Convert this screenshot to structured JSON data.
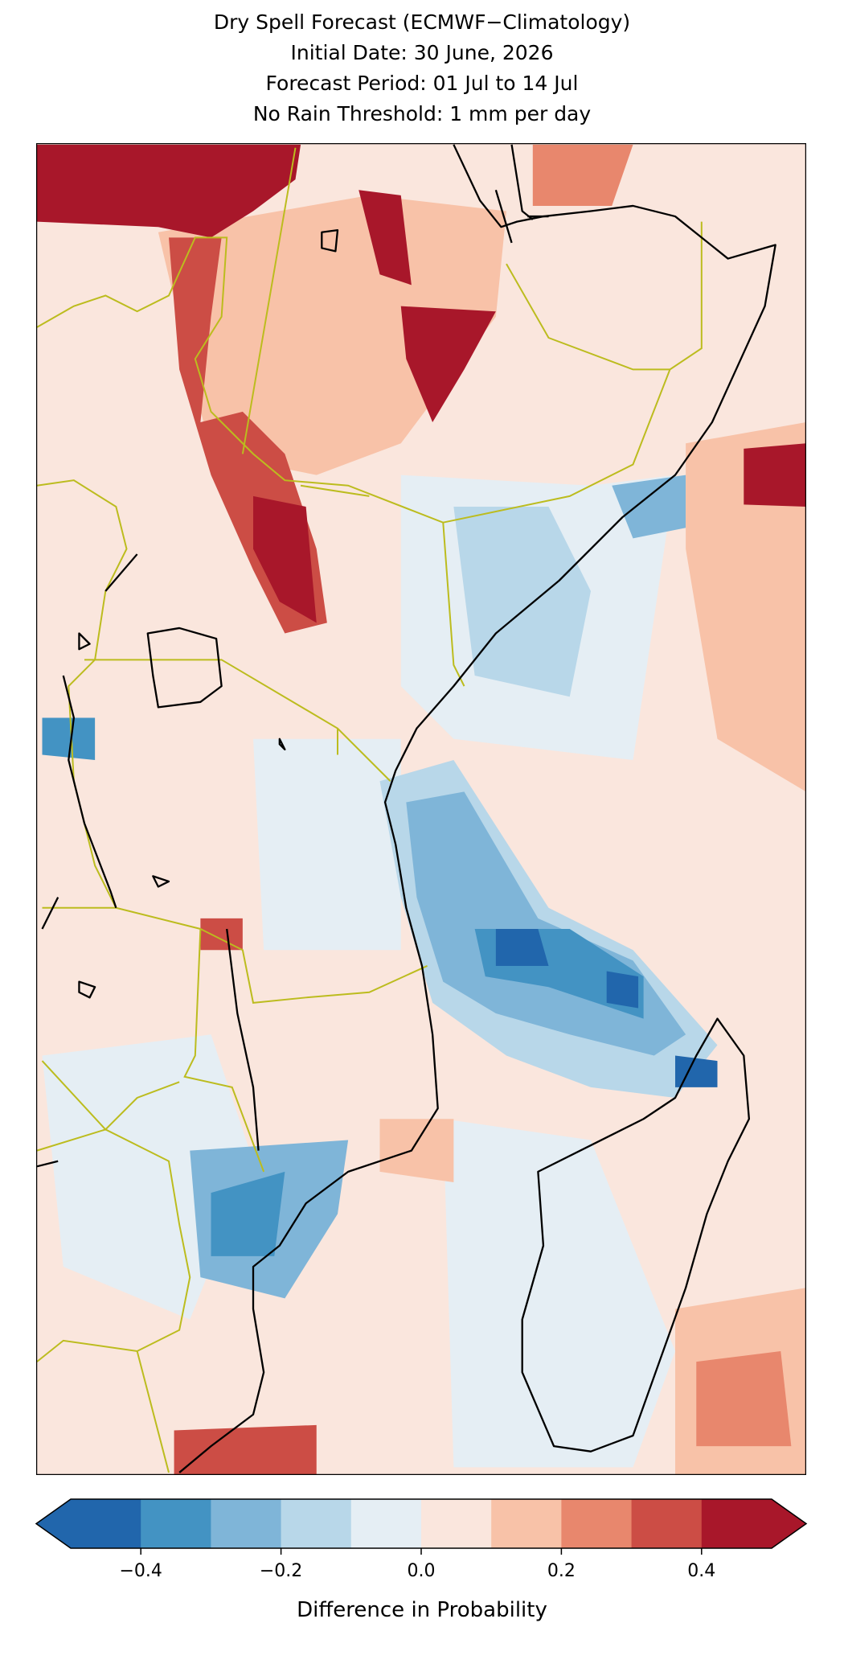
{
  "title_lines": [
    "Dry Spell Forecast (ECMWF−Climatology)",
    "Initial Date: 30 June, 2026",
    "Forecast Period: 01 Jul to 14 Jul",
    "No Rain Threshold: 1 mm per day"
  ],
  "colorbar": {
    "label": "Difference in Probability",
    "lim": [
      -0.5,
      0.5
    ],
    "ticks": [
      {
        "value": -0.4,
        "label": "−0.4"
      },
      {
        "value": -0.2,
        "label": "−0.2"
      },
      {
        "value": 0,
        "label": "0.0"
      },
      {
        "value": 0.2,
        "label": "0.2"
      },
      {
        "value": 0.4,
        "label": "0.4"
      }
    ],
    "colors": [
      "#2166ac",
      "#4393c3",
      "#7fb5d8",
      "#b8d7e9",
      "#e5eef4",
      "#fae6dd",
      "#f8c2a8",
      "#e8876d",
      "#cc4d45",
      "#a8172a"
    ],
    "extend": "both"
  }
}
